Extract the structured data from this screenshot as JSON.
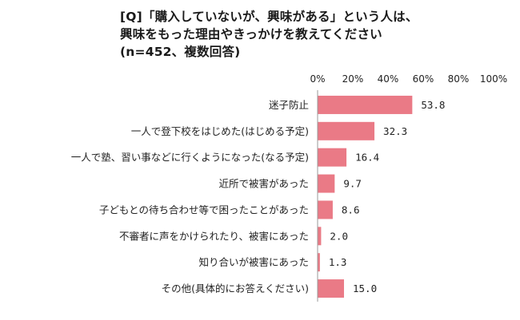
{
  "chart_data": {
    "type": "bar",
    "orientation": "horizontal",
    "title_lines": [
      "[Q]「購入していないが、興味がある」という人は、",
      "興味をもった理由やきっかけを教えてください",
      "(n=452、複数回答)"
    ],
    "categories": [
      "迷子防止",
      "一人で登下校をはじめた(はじめる予定)",
      "一人で塾、習い事などに行くようになった(なる予定)",
      "近所で被害があった",
      "子どもとの待ち合わせ等で困ったことがあった",
      "不審者に声をかけられたり、被害にあった",
      "知り合いが被害にあった",
      "その他(具体的にお答えください)"
    ],
    "values": [
      53.8,
      32.3,
      16.4,
      9.7,
      8.6,
      2.0,
      1.3,
      15.0
    ],
    "value_labels": [
      "53.8",
      "32.3",
      "16.4",
      "9.7",
      "8.6",
      "2.0",
      "1.3",
      "15.0"
    ],
    "xlim": [
      0,
      100
    ],
    "x_ticks": [
      "0%",
      "20%",
      "40%",
      "60%",
      "80%",
      "100%"
    ],
    "x_tick_values": [
      0,
      20,
      40,
      60,
      80,
      100
    ],
    "bar_color": "#ea7a86",
    "grid": false,
    "legend": "none"
  }
}
